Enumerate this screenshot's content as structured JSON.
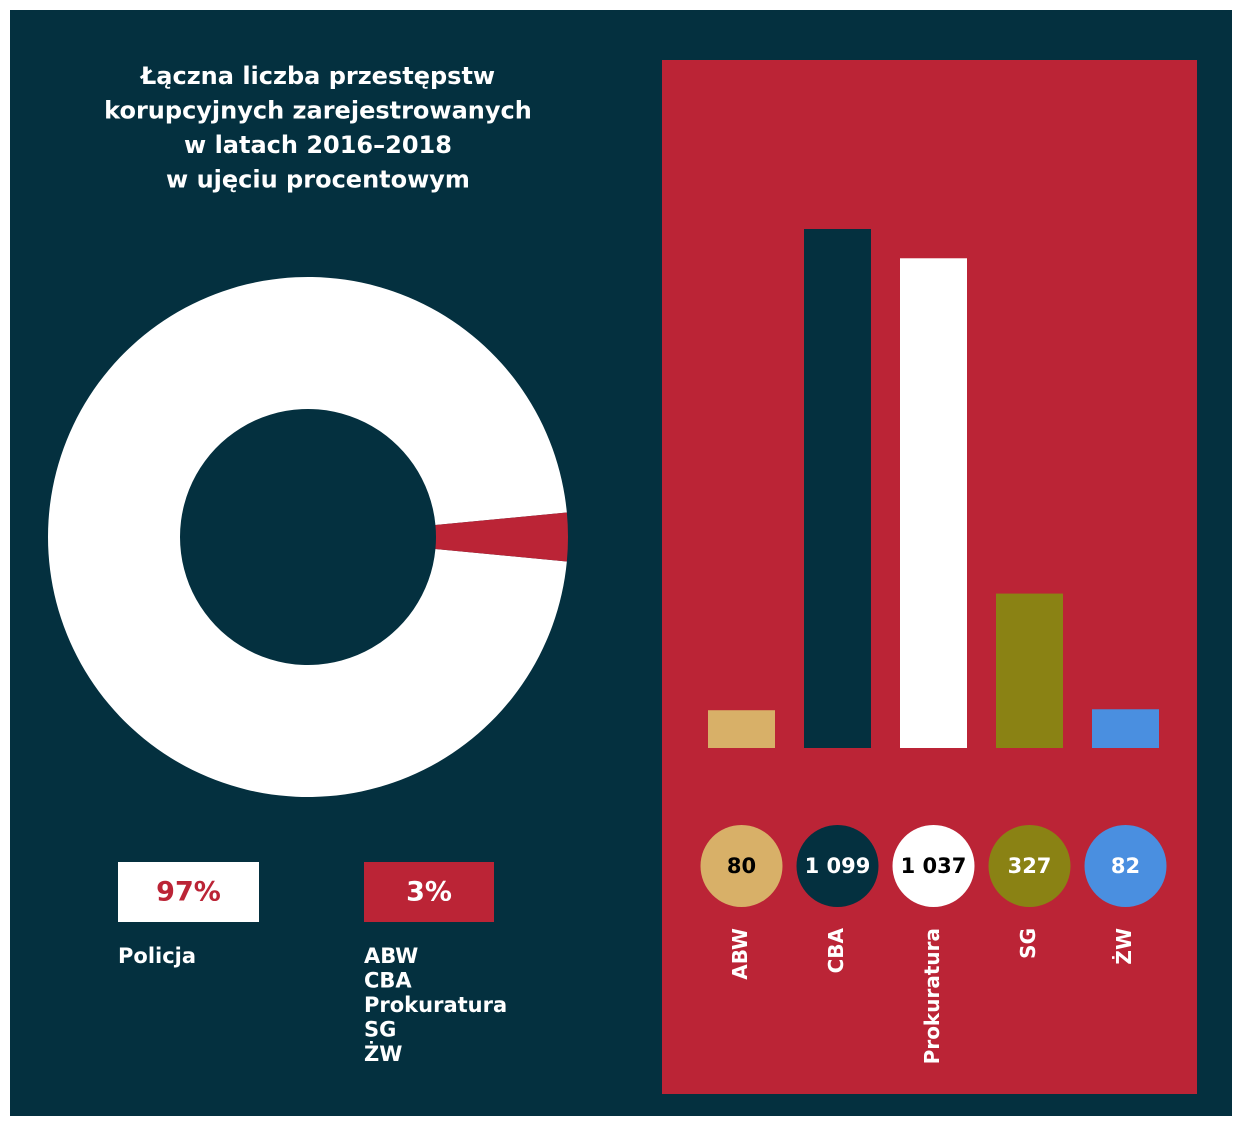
{
  "chart_data": [
    {
      "type": "donut",
      "title": [
        "Łączna liczba przestępstw",
        "korupcyjnych zarejestrowanych",
        "w latach 2016–2018",
        "w ujęciu procentowym"
      ],
      "labels": [
        [
          "Policja"
        ],
        [
          "ABW",
          "CBA",
          "Prokuratura",
          "SG",
          "ŻW"
        ]
      ],
      "values": [
        97,
        3
      ],
      "value_labels": [
        "97%",
        "3%"
      ],
      "colors": [
        "#ffffff",
        "#bb2436"
      ]
    },
    {
      "type": "bar",
      "categories": [
        "ABW",
        "CBA",
        "Prokuratura",
        "SG",
        "ŻW"
      ],
      "values": [
        80,
        1099,
        1037,
        327,
        82
      ],
      "value_labels": [
        "80",
        "1 099",
        "1 037",
        "327",
        "82"
      ],
      "colors": [
        "#d8b068",
        "#04303f",
        "#ffffff",
        "#8a8214",
        "#4a8fe0"
      ]
    }
  ]
}
